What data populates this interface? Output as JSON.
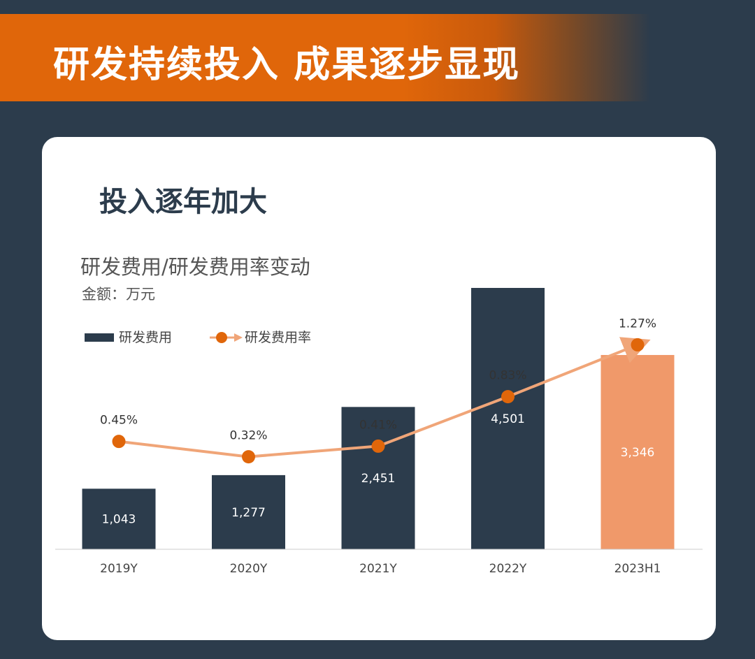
{
  "header": {
    "title": "研发持续投入 成果逐步显现"
  },
  "card": {
    "title": "投入逐年加大"
  },
  "chart_data": {
    "type": "bar",
    "title": "研发费用/研发费用率变动",
    "unit": "金额：万元",
    "categories": [
      "2019Y",
      "2020Y",
      "2021Y",
      "2022Y",
      "2023H1"
    ],
    "series": [
      {
        "name": "研发费用",
        "type": "bar",
        "values": [
          1043,
          1277,
          2451,
          4501,
          3346
        ],
        "labels": [
          "1,043",
          "1,277",
          "2,451",
          "4,501",
          "3,346"
        ],
        "color": "#2c3c4c",
        "highlight_color": "#f0996a",
        "highlight_index": 4
      },
      {
        "name": "研发费用率",
        "type": "line",
        "values": [
          0.45,
          0.32,
          0.41,
          0.83,
          1.27
        ],
        "labels": [
          "0.45%",
          "0.32%",
          "0.41%",
          "0.83%",
          "1.27%"
        ],
        "color": "#e0660a",
        "line_color": "#f0a578"
      }
    ],
    "legend": {
      "position": "top-left"
    }
  }
}
